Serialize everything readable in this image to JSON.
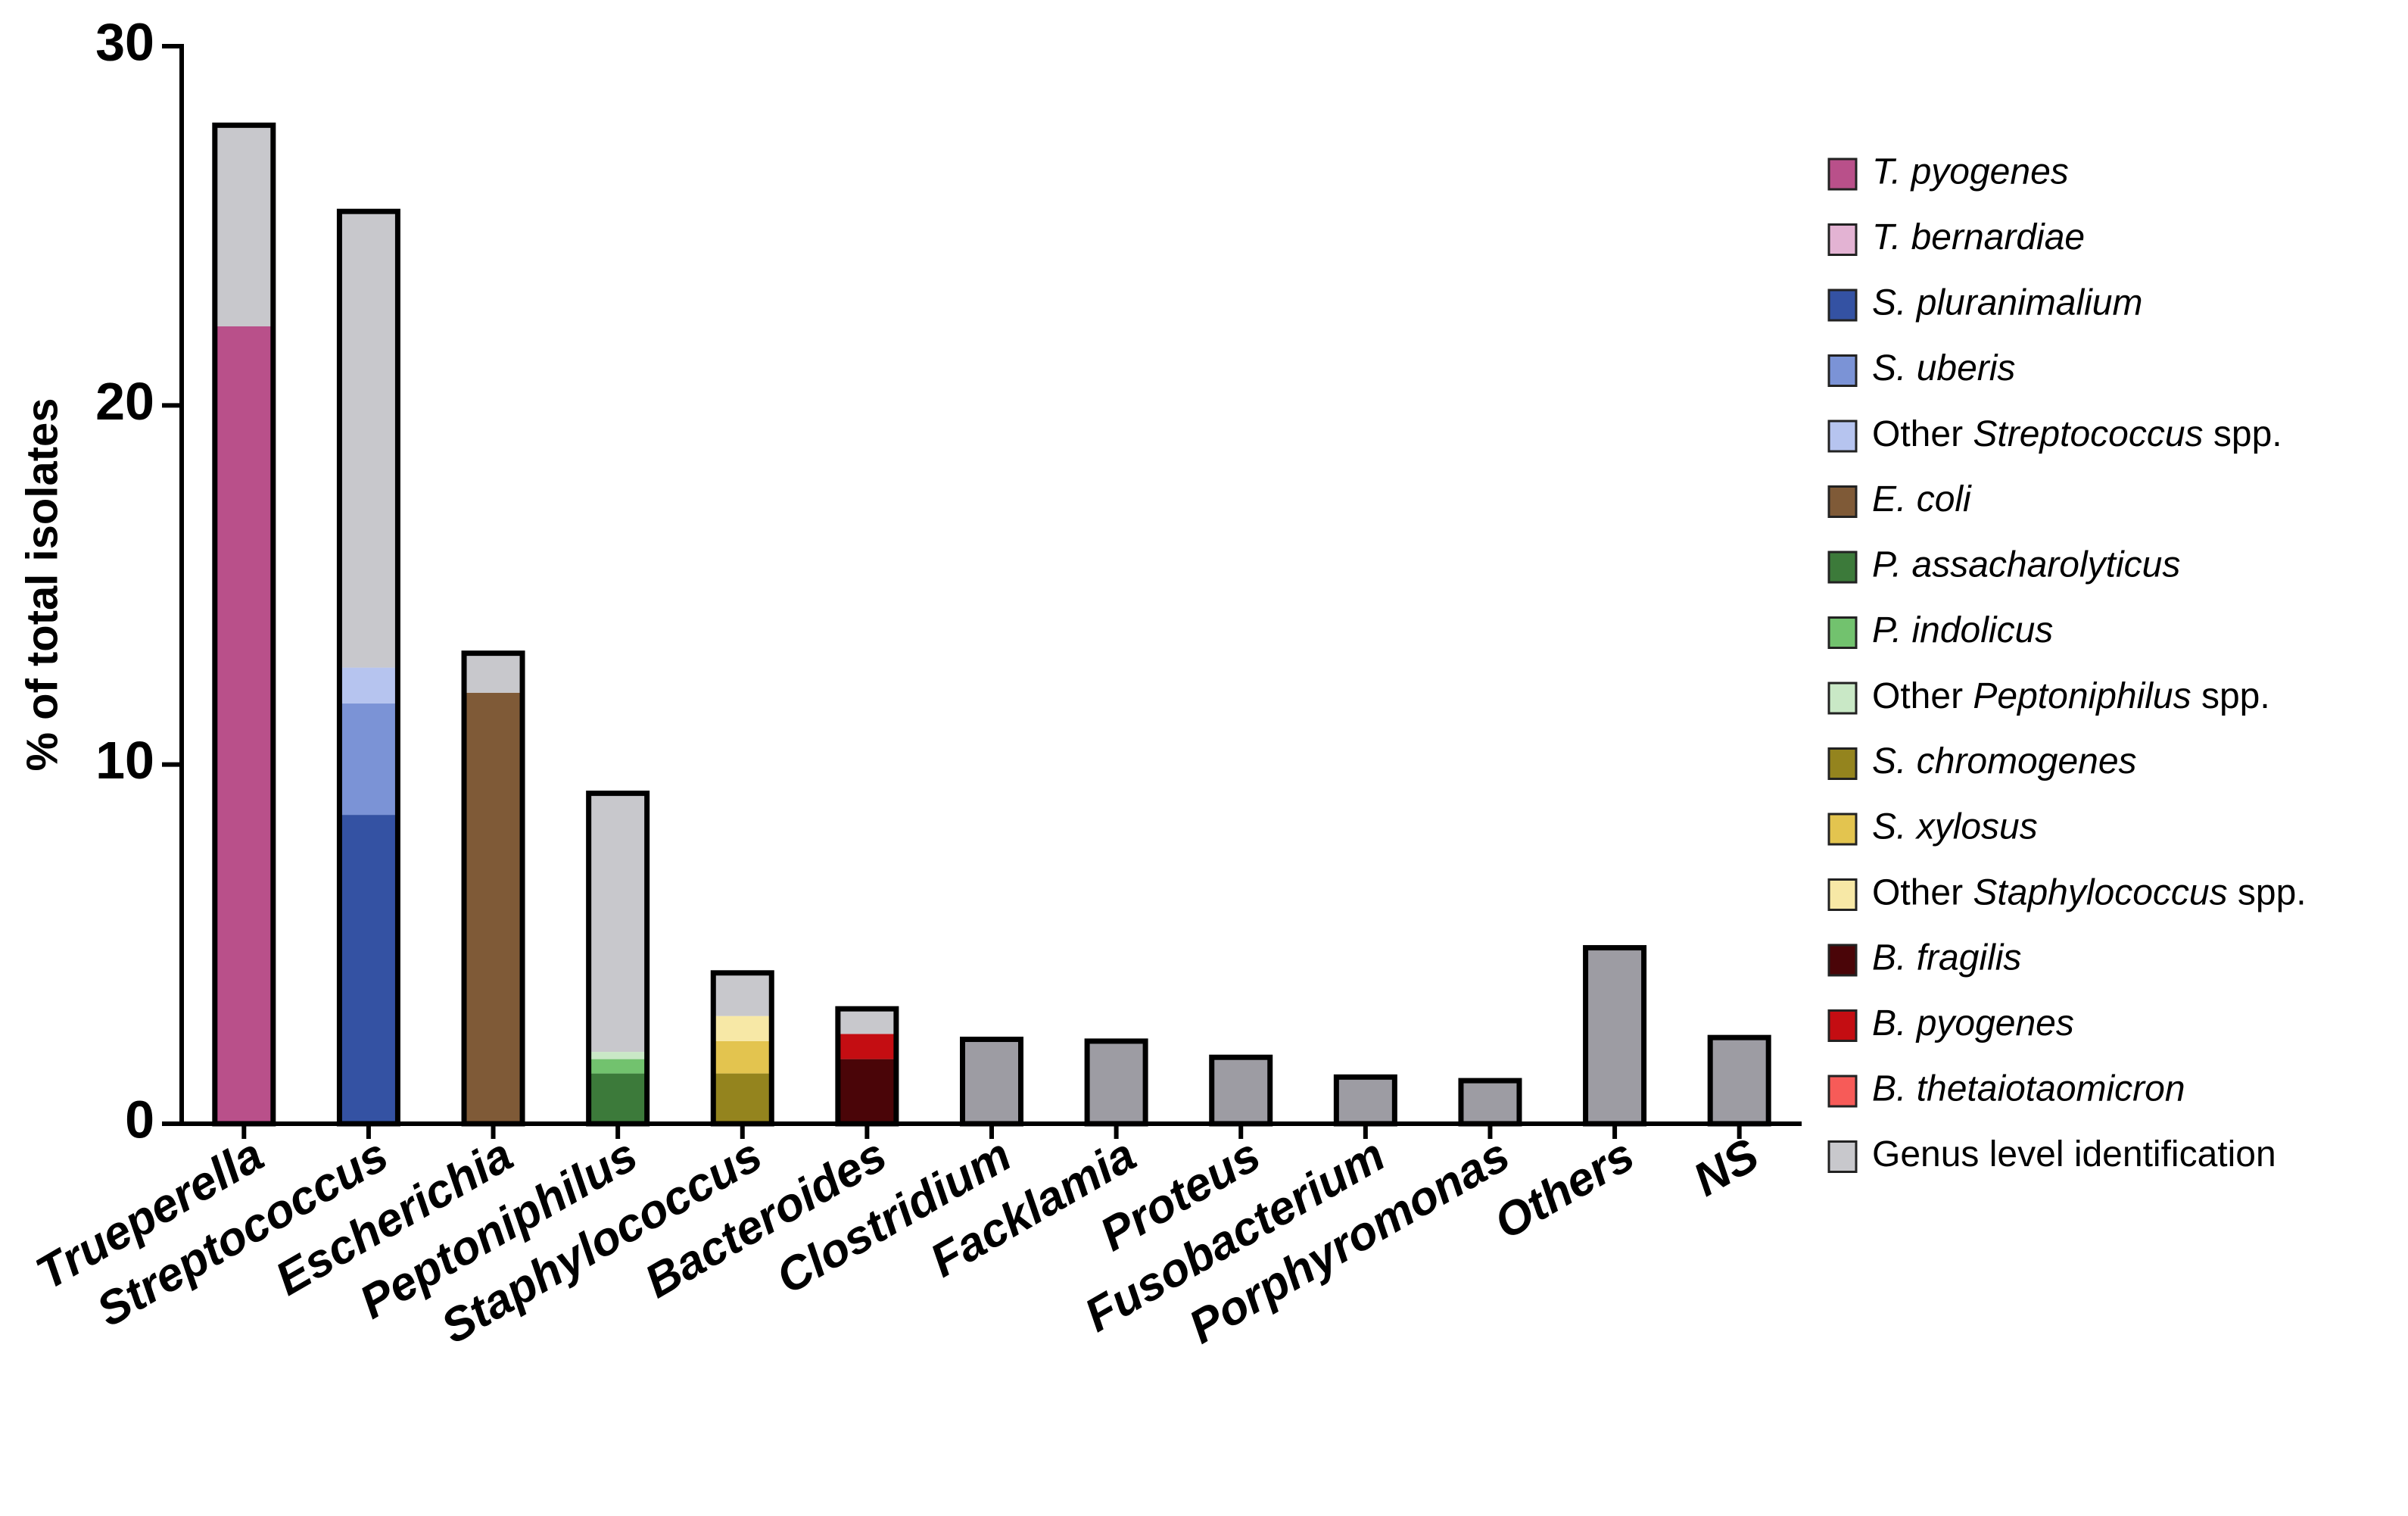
{
  "chart_data": {
    "type": "stacked-bar",
    "y_label": "% of total isolates",
    "categories": [
      "Trueperella",
      "Streptococcus",
      "Escherichia",
      "Peptoniphilus",
      "Staphylococcus",
      "Bacteroides",
      "Clostridium",
      "Facklamia",
      "Proteus",
      "Fusobacterium",
      "Porphyromonas",
      "Others",
      "NS"
    ],
    "ylim": [
      0,
      30
    ],
    "yticks": [
      0,
      10,
      20,
      30
    ],
    "series": [
      {
        "name": "T. pyogenes",
        "color": "#b9508a",
        "values": [
          22.2,
          0,
          0,
          0,
          0,
          0,
          0,
          0,
          0,
          0,
          0,
          0,
          0
        ]
      },
      {
        "name": "T. bernardiae",
        "color": "#e3b3d3",
        "values": [
          0,
          0,
          0,
          0,
          0,
          0,
          0,
          0,
          0,
          0,
          0,
          0,
          0
        ]
      },
      {
        "name": "S. pluranimalium",
        "color": "#3452a3",
        "values": [
          0,
          8.6,
          0,
          0,
          0,
          0,
          0,
          0,
          0,
          0,
          0,
          0,
          0
        ]
      },
      {
        "name": "S. uberis",
        "color": "#7b93d6",
        "values": [
          0,
          3.1,
          0,
          0,
          0,
          0,
          0,
          0,
          0,
          0,
          0,
          0,
          0
        ]
      },
      {
        "name": "Other Streptococcus spp.",
        "color": "#b6c4ef",
        "values": [
          0,
          1.0,
          0,
          0,
          0,
          0,
          0,
          0,
          0,
          0,
          0,
          0,
          0
        ]
      },
      {
        "name": "E. coli",
        "color": "#7f5a37",
        "values": [
          0,
          0,
          12.0,
          0,
          0,
          0,
          0,
          0,
          0,
          0,
          0,
          0,
          0
        ]
      },
      {
        "name": "P. assacharolyticus",
        "color": "#3c7a3a",
        "values": [
          0,
          0,
          0,
          1.4,
          0,
          0,
          0,
          0,
          0,
          0,
          0,
          0,
          0
        ]
      },
      {
        "name": "P. indolicus",
        "color": "#72c26e",
        "values": [
          0,
          0,
          0,
          0.4,
          0,
          0,
          0,
          0,
          0,
          0,
          0,
          0,
          0
        ]
      },
      {
        "name": "Other Peptoniphilus spp.",
        "color": "#c9e8c6",
        "values": [
          0,
          0,
          0,
          0.2,
          0,
          0,
          0,
          0,
          0,
          0,
          0,
          0,
          0
        ]
      },
      {
        "name": "S. chromogenes",
        "color": "#94841e",
        "values": [
          0,
          0,
          0,
          0,
          1.4,
          0,
          0,
          0,
          0,
          0,
          0,
          0,
          0
        ]
      },
      {
        "name": "S. xylosus",
        "color": "#e3c44f",
        "values": [
          0,
          0,
          0,
          0,
          0.9,
          0,
          0,
          0,
          0,
          0,
          0,
          0,
          0
        ]
      },
      {
        "name": "Other Staphylococcus spp.",
        "color": "#f7e8a6",
        "values": [
          0,
          0,
          0,
          0,
          0.7,
          0,
          0,
          0,
          0,
          0,
          0,
          0,
          0
        ]
      },
      {
        "name": "B. fragilis",
        "color": "#4a0508",
        "values": [
          0,
          0,
          0,
          0,
          0,
          1.8,
          0,
          0,
          0,
          0,
          0,
          0,
          0
        ]
      },
      {
        "name": "B. pyogenes",
        "color": "#c40d12",
        "values": [
          0,
          0,
          0,
          0,
          0,
          0.7,
          0,
          0,
          0,
          0,
          0,
          0,
          0
        ]
      },
      {
        "name": "B. thetaiotaomicron",
        "color": "#f75b58",
        "values": [
          0,
          0,
          0,
          0,
          0,
          0,
          0,
          0,
          0,
          0,
          0,
          0,
          0
        ]
      },
      {
        "name": "Genus level identification",
        "color": "#c8c8cc",
        "values": [
          5.6,
          12.7,
          1.1,
          7.2,
          1.2,
          0.7,
          2.35,
          2.3,
          1.85,
          1.3,
          1.2,
          4.9,
          2.4
        ],
        "colors": [
          "#c8c8cc",
          "#c8c8cc",
          "#c8c8cc",
          "#c8c8cc",
          "#c8c8cc",
          "#c8c8cc",
          "#9d9ca3",
          "#9d9ca3",
          "#9d9ca3",
          "#9d9ca3",
          "#9d9ca3",
          "#9d9ca3",
          "#9d9ca3"
        ]
      }
    ]
  }
}
